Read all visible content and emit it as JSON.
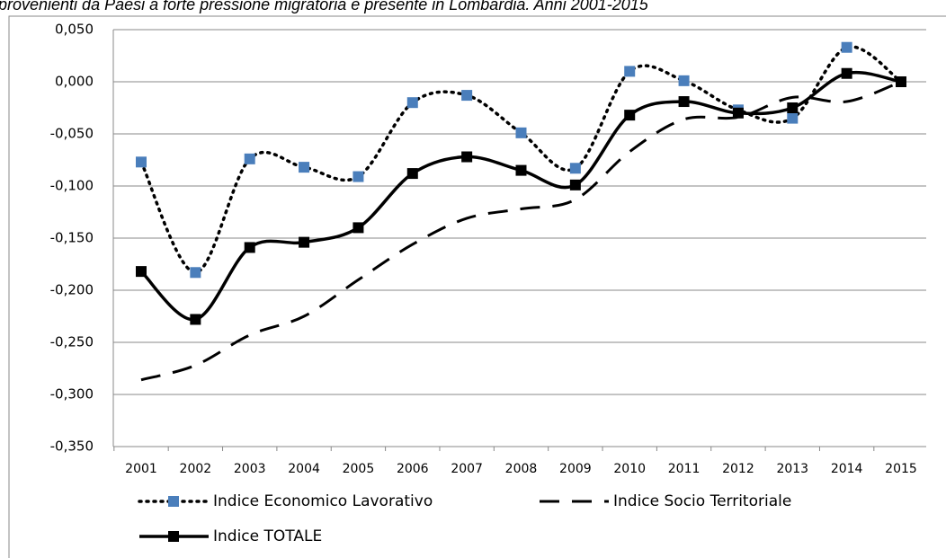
{
  "chart_data": {
    "type": "line",
    "title": "provenienti da Paesi a forte pressione migratoria è presente in Lombardia. Anni 2001-2015",
    "categories": [
      "2001",
      "2002",
      "2003",
      "2004",
      "2005",
      "2006",
      "2007",
      "2008",
      "2009",
      "2010",
      "2011",
      "2012",
      "2013",
      "2014",
      "2015"
    ],
    "series": [
      {
        "name": "Indice Economico Lavorativo",
        "color": "#4a7ebb",
        "line": "dotted",
        "marker": "square",
        "values": [
          -0.077,
          -0.183,
          -0.074,
          -0.082,
          -0.091,
          -0.02,
          -0.013,
          -0.049,
          -0.083,
          0.01,
          0.001,
          -0.027,
          -0.035,
          0.033,
          0.0
        ]
      },
      {
        "name": "Indice Socio Territoriale",
        "color": "#000000",
        "line": "dashed",
        "marker": "none",
        "values": [
          -0.286,
          -0.272,
          -0.243,
          -0.225,
          -0.19,
          -0.156,
          -0.131,
          -0.122,
          -0.113,
          -0.067,
          -0.036,
          -0.034,
          -0.015,
          -0.019,
          0.0
        ]
      },
      {
        "name": "Indice TOTALE",
        "color": "#000000",
        "line": "solid",
        "marker": "square",
        "values": [
          -0.182,
          -0.228,
          -0.159,
          -0.154,
          -0.14,
          -0.088,
          -0.072,
          -0.085,
          -0.099,
          -0.032,
          -0.019,
          -0.03,
          -0.025,
          0.008,
          0.0
        ]
      }
    ],
    "ylim": [
      -0.35,
      0.05
    ],
    "yticks": [
      {
        "value": -0.35,
        "label": "-0,350"
      },
      {
        "value": -0.3,
        "label": "-0,300"
      },
      {
        "value": -0.25,
        "label": "-0,250"
      },
      {
        "value": -0.2,
        "label": "-0,200"
      },
      {
        "value": -0.15,
        "label": "-0,150"
      },
      {
        "value": -0.1,
        "label": "-0,100"
      },
      {
        "value": -0.05,
        "label": "-0,050"
      },
      {
        "value": 0,
        "label": "0,000"
      },
      {
        "value": 0.05,
        "label": "0,050"
      }
    ],
    "grid": true
  }
}
